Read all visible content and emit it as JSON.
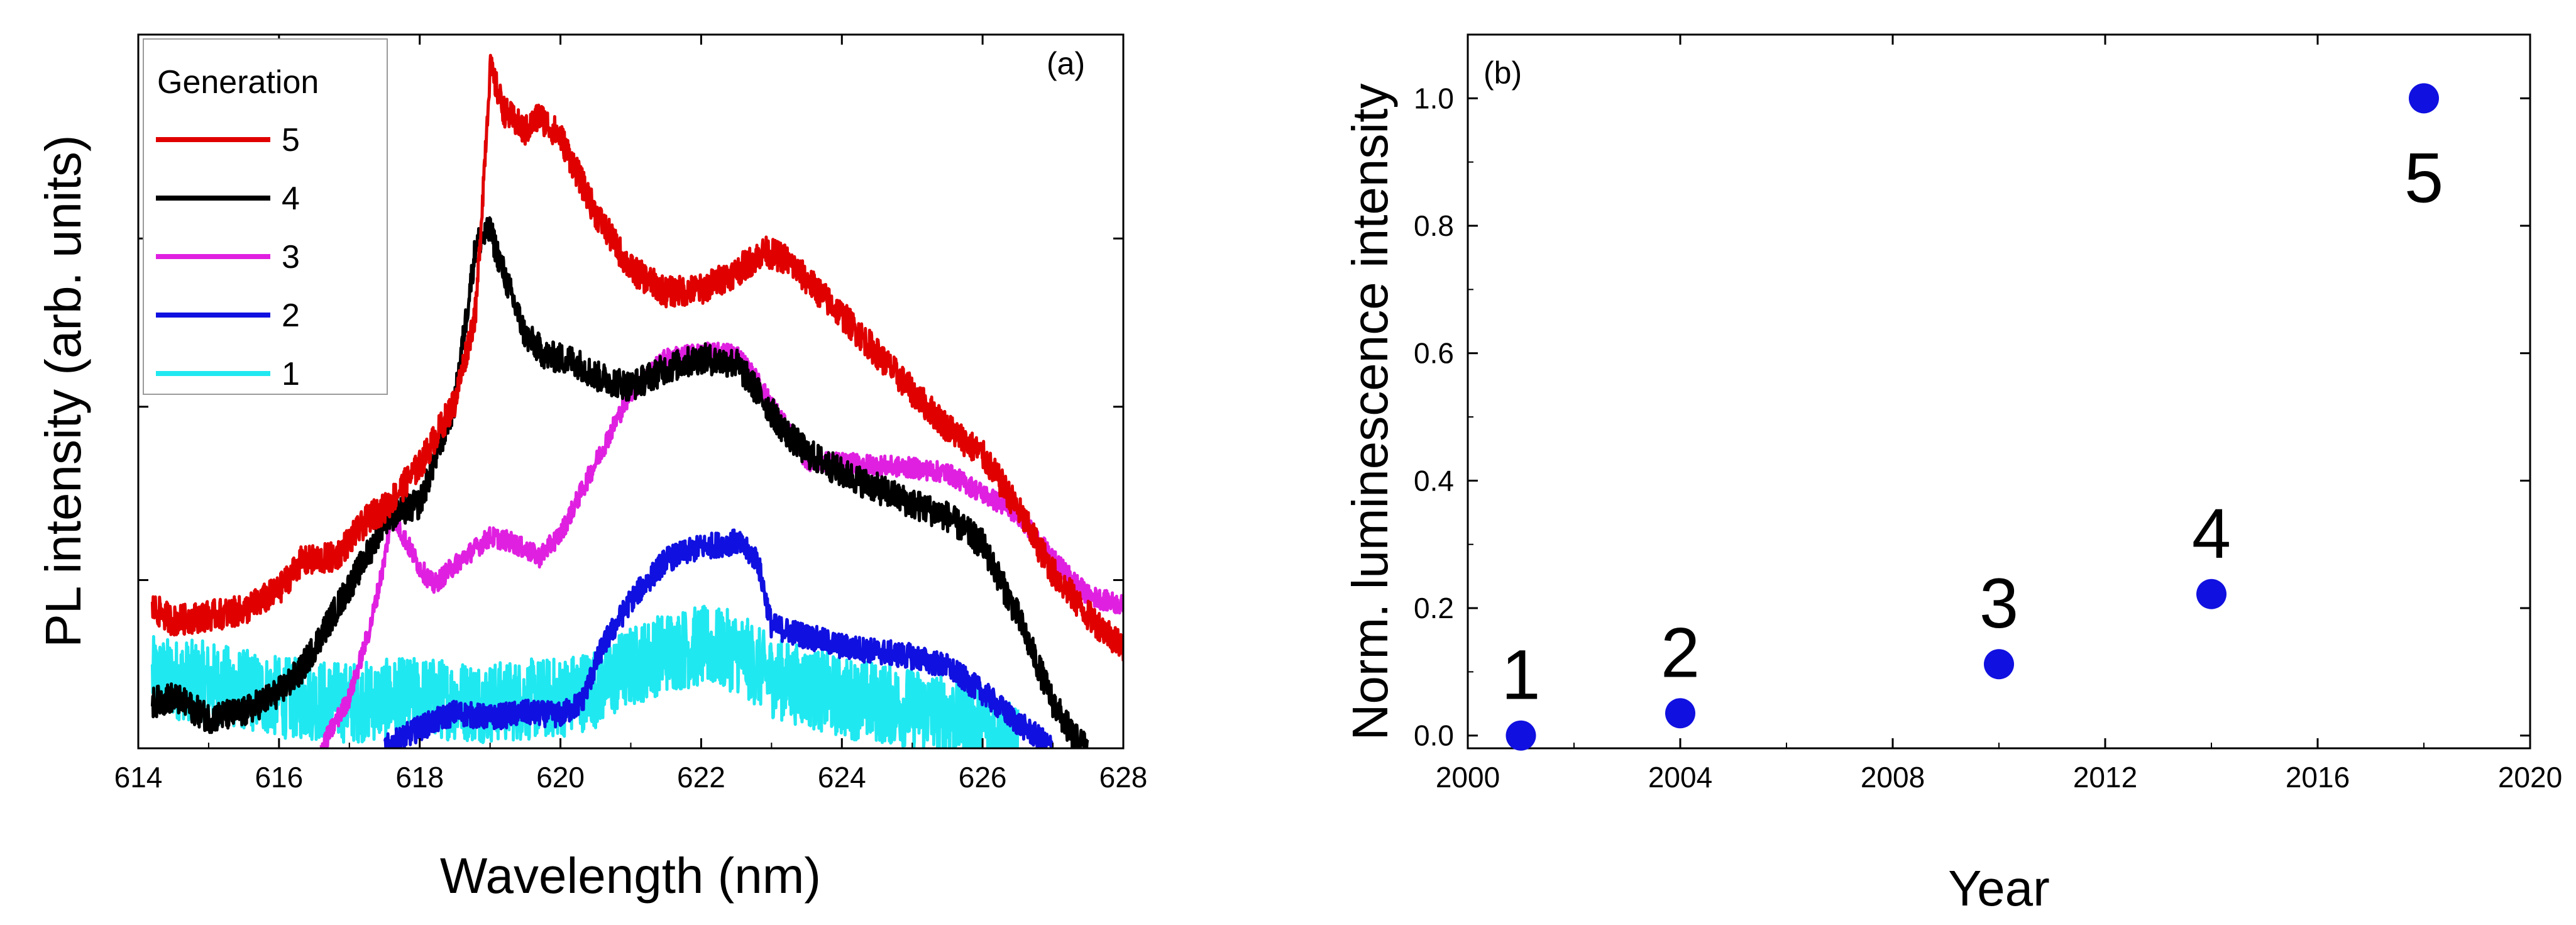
{
  "chart_data": [
    {
      "panel": "(a)",
      "type": "line",
      "xlabel": "Wavelength (nm)",
      "ylabel": "PL intensity (arb. units)",
      "xlim": [
        614,
        628
      ],
      "xticks": [
        614,
        616,
        618,
        620,
        622,
        624,
        626,
        628
      ],
      "ylim": [
        0,
        1.4
      ],
      "yscale": "log",
      "y_tick_labels_shown": false,
      "grid": false,
      "legend": {
        "title": "Generation",
        "placement": "top-left",
        "entries": [
          "5",
          "4",
          "3",
          "2",
          "1"
        ]
      },
      "series": [
        {
          "name": "5",
          "color": "#e00000",
          "start": 614.2,
          "end": 628,
          "noise": 0.03,
          "x": [
            614.2,
            614.5,
            615,
            615.5,
            616,
            616.3,
            616.8,
            617.3,
            617.5,
            618,
            618.5,
            618.8,
            619,
            619.2,
            619.5,
            619.7,
            620,
            620.5,
            621,
            621.5,
            622,
            622.5,
            622.9,
            623.2,
            624,
            625,
            625.5,
            626,
            626.5,
            627,
            627.5,
            628
          ],
          "values": [
            0.275,
            0.25,
            0.26,
            0.27,
            0.31,
            0.365,
            0.375,
            0.455,
            0.47,
            0.555,
            0.68,
            0.86,
            1.335,
            1.25,
            1.21,
            1.24,
            1.2,
            1.05,
            0.94,
            0.895,
            0.9,
            0.935,
            0.975,
            0.96,
            0.85,
            0.7,
            0.63,
            0.575,
            0.47,
            0.345,
            0.26,
            0.2
          ]
        },
        {
          "name": "4",
          "color": "#000000",
          "start": 614.2,
          "end": 627.5,
          "noise": 0.03,
          "x": [
            614.2,
            614.5,
            615,
            615.5,
            616,
            616.3,
            616.8,
            617.3,
            617.5,
            618,
            618.5,
            618.8,
            619,
            619.2,
            619.5,
            619.8,
            620.2,
            620.5,
            621,
            621.5,
            622,
            622.5,
            622.8,
            623.2,
            623.5,
            624,
            625,
            625.5,
            626,
            626.5,
            627,
            627.3,
            627.5
          ],
          "values": [
            0.09,
            0.1,
            0.06,
            0.07,
            0.11,
            0.15,
            0.27,
            0.39,
            0.45,
            0.48,
            0.68,
            0.99,
            1.015,
            0.93,
            0.81,
            0.77,
            0.76,
            0.73,
            0.71,
            0.745,
            0.765,
            0.755,
            0.7,
            0.62,
            0.58,
            0.54,
            0.48,
            0.455,
            0.4,
            0.26,
            0.09,
            0.02,
            0.0
          ]
        },
        {
          "name": "3",
          "color": "#e020e0",
          "start": 616.6,
          "end": 628,
          "noise": 0.02,
          "x": [
            616.6,
            617,
            617.3,
            617.5,
            617.6,
            618,
            618.2,
            618.5,
            619,
            619.3,
            619.7,
            620,
            620.5,
            621,
            621.5,
            622,
            622.5,
            622.8,
            623.2,
            623.5,
            624,
            625,
            625.5,
            626,
            626.5,
            627,
            627.5,
            628
          ],
          "values": [
            0.0,
            0.1,
            0.24,
            0.37,
            0.46,
            0.355,
            0.32,
            0.36,
            0.415,
            0.405,
            0.375,
            0.42,
            0.56,
            0.7,
            0.765,
            0.775,
            0.775,
            0.72,
            0.63,
            0.565,
            0.56,
            0.55,
            0.54,
            0.5,
            0.46,
            0.37,
            0.3,
            0.28
          ]
        },
        {
          "name": "2",
          "color": "#1010e0",
          "start": 617.5,
          "end": 627,
          "noise": 0.025,
          "x": [
            617.5,
            618,
            618.5,
            619,
            619.5,
            620,
            620.3,
            620.6,
            621,
            621.5,
            622,
            622.5,
            622.8,
            623,
            623.5,
            624,
            625,
            625.5,
            626,
            626.5,
            627
          ],
          "values": [
            0.0,
            0.04,
            0.07,
            0.06,
            0.07,
            0.065,
            0.09,
            0.2,
            0.29,
            0.37,
            0.395,
            0.405,
            0.37,
            0.24,
            0.22,
            0.2,
            0.18,
            0.16,
            0.11,
            0.05,
            0.0
          ]
        },
        {
          "name": "1",
          "color": "#20e8f0",
          "start": 614.2,
          "end": 626.5,
          "noise": 0.05,
          "x": [
            614.2,
            615,
            616,
            617,
            618,
            619,
            620,
            620.5,
            621,
            621.5,
            622,
            622.5,
            623,
            624,
            625,
            626,
            626.5
          ],
          "values": [
            0.14,
            0.13,
            0.1,
            0.09,
            0.1,
            0.09,
            0.1,
            0.12,
            0.16,
            0.19,
            0.2,
            0.19,
            0.14,
            0.1,
            0.08,
            0.05,
            0.0
          ]
        }
      ]
    },
    {
      "panel": "(b)",
      "type": "scatter",
      "xlabel": "Year",
      "ylabel": "Norm. luminescence intensity",
      "xlim": [
        2000,
        2020
      ],
      "ylim": [
        -0.02,
        1.1
      ],
      "xticks": [
        2000,
        2004,
        2008,
        2012,
        2016,
        2020
      ],
      "yticks": [
        "0.0",
        "0.2",
        "0.4",
        "0.6",
        "0.8",
        "1.0"
      ],
      "grid": false,
      "marker_color": "#1010e0",
      "points": [
        {
          "x": 2001,
          "y": 0.0,
          "label": "1",
          "label_pos": "above"
        },
        {
          "x": 2004,
          "y": 0.035,
          "label": "2",
          "label_pos": "above"
        },
        {
          "x": 2010,
          "y": 0.112,
          "label": "3",
          "label_pos": "above"
        },
        {
          "x": 2014,
          "y": 0.222,
          "label": "4",
          "label_pos": "above"
        },
        {
          "x": 2018,
          "y": 1.0,
          "label": "5",
          "label_pos": "below"
        }
      ]
    }
  ]
}
